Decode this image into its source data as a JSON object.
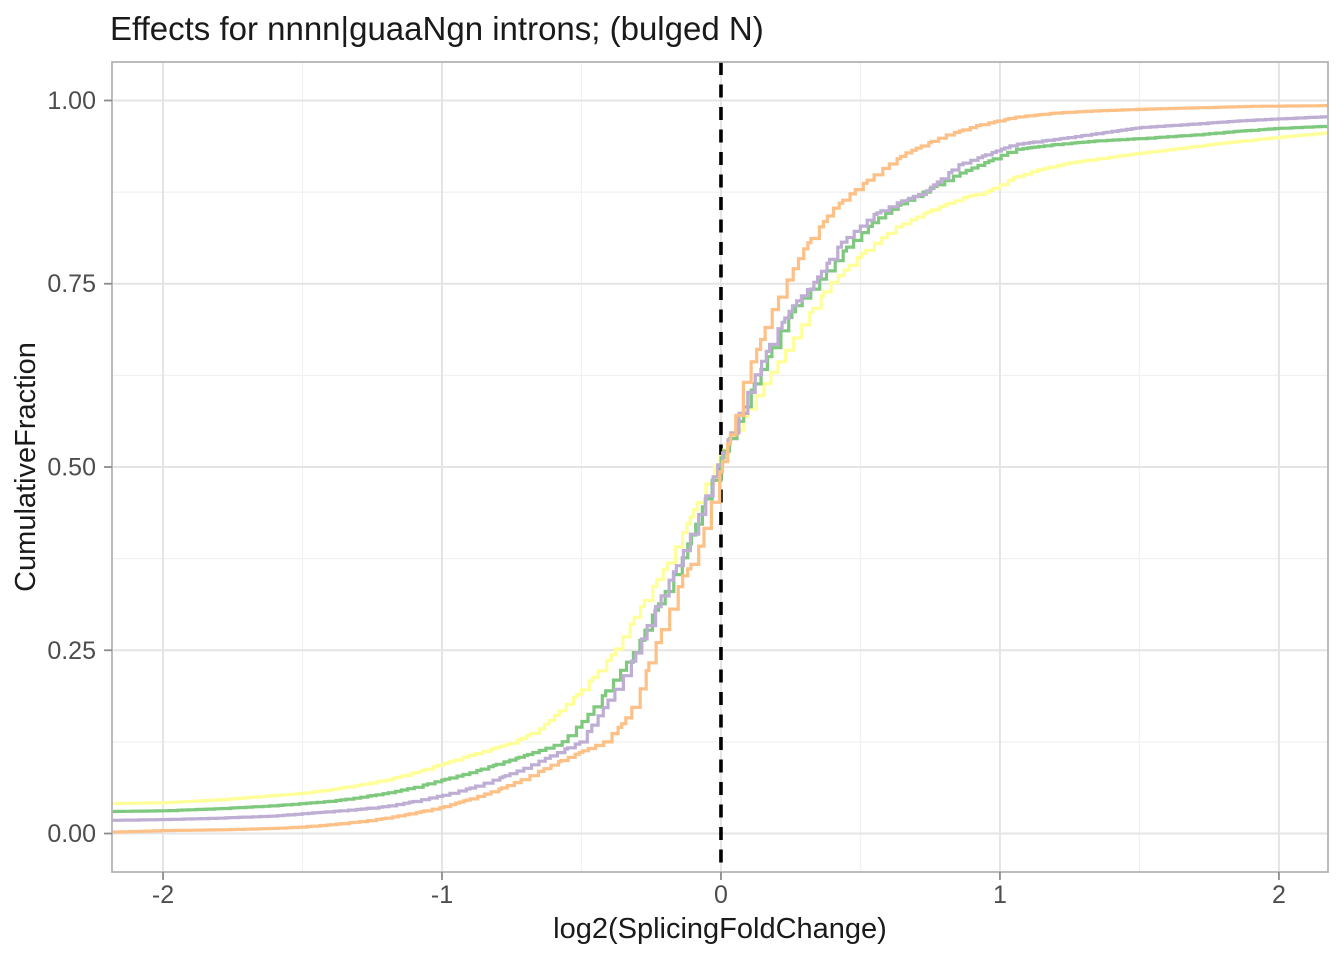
{
  "title": "Effects for nnnn|guaaNgn introns; (bulged N)",
  "colors": {
    "background": "#ffffff",
    "panel_background": "#ffffff",
    "panel_border": "#b4b4b4",
    "grid_major": "#e4e4e4",
    "grid_minor": "#f1f1f1",
    "axis_tick": "#8c8c8c",
    "tick_label": "#4d4d4d",
    "title_text": "#1a1a1a",
    "vline": "#000000"
  },
  "chart_data": {
    "type": "line",
    "subtype": "ecdf-step",
    "title": "Effects for nnnn|guaaNgn introns; (bulged N)",
    "xlabel": "log2(SplicingFoldChange)",
    "ylabel": "CumulativeFraction",
    "xlim": [
      -2.183,
      2.176
    ],
    "ylim": [
      -0.0525,
      1.0525
    ],
    "x_ticks": [
      -2,
      -1,
      0,
      1,
      2
    ],
    "x_tick_labels": [
      "-2",
      "-1",
      "0",
      "1",
      "2"
    ],
    "y_ticks": [
      0,
      0.25,
      0.5,
      0.75,
      1
    ],
    "y_tick_labels": [
      "0.00",
      "0.25",
      "0.50",
      "0.75",
      "1.00"
    ],
    "grid": "major+minor",
    "legend": "none",
    "vline": {
      "x": 0,
      "linetype": "dashed",
      "color": "#000000"
    },
    "line_width": 3.2,
    "series": [
      {
        "name": "yellow-curve",
        "color": "#FFFF99",
        "points": [
          [
            -2.183,
            0.041
          ],
          [
            -2.0,
            0.042
          ],
          [
            -1.8,
            0.046
          ],
          [
            -1.6,
            0.052
          ],
          [
            -1.5,
            0.055
          ],
          [
            -1.4,
            0.06
          ],
          [
            -1.3,
            0.066
          ],
          [
            -1.2,
            0.073
          ],
          [
            -1.1,
            0.083
          ],
          [
            -1.0,
            0.095
          ],
          [
            -0.9,
            0.107
          ],
          [
            -0.8,
            0.118
          ],
          [
            -0.74,
            0.125
          ],
          [
            -0.65,
            0.143
          ],
          [
            -0.6,
            0.16
          ],
          [
            -0.5,
            0.196
          ],
          [
            -0.44,
            0.222
          ],
          [
            -0.38,
            0.25
          ],
          [
            -0.3,
            0.302
          ],
          [
            -0.24,
            0.34
          ],
          [
            -0.183,
            0.375
          ],
          [
            -0.1,
            0.44
          ],
          [
            -0.025,
            0.5
          ],
          [
            0.06,
            0.556
          ],
          [
            0.172,
            0.625
          ],
          [
            0.25,
            0.67
          ],
          [
            0.32,
            0.712
          ],
          [
            0.39,
            0.75
          ],
          [
            0.5,
            0.79
          ],
          [
            0.62,
            0.826
          ],
          [
            0.75,
            0.85
          ],
          [
            0.87,
            0.868
          ],
          [
            0.95,
            0.875
          ],
          [
            1.05,
            0.895
          ],
          [
            1.14,
            0.906
          ],
          [
            1.25,
            0.915
          ],
          [
            1.4,
            0.923
          ],
          [
            1.5,
            0.928
          ],
          [
            1.65,
            0.935
          ],
          [
            1.8,
            0.942
          ],
          [
            2.0,
            0.95
          ],
          [
            2.176,
            0.956
          ]
        ]
      },
      {
        "name": "green-curve",
        "color": "#7FC97F",
        "points": [
          [
            -2.183,
            0.03
          ],
          [
            -2.0,
            0.031
          ],
          [
            -1.8,
            0.034
          ],
          [
            -1.6,
            0.038
          ],
          [
            -1.5,
            0.041
          ],
          [
            -1.4,
            0.044
          ],
          [
            -1.3,
            0.049
          ],
          [
            -1.2,
            0.055
          ],
          [
            -1.1,
            0.063
          ],
          [
            -1.0,
            0.073
          ],
          [
            -0.9,
            0.083
          ],
          [
            -0.8,
            0.095
          ],
          [
            -0.7,
            0.107
          ],
          [
            -0.6,
            0.12
          ],
          [
            -0.57,
            0.125
          ],
          [
            -0.5,
            0.152
          ],
          [
            -0.45,
            0.175
          ],
          [
            -0.38,
            0.212
          ],
          [
            -0.308,
            0.25
          ],
          [
            -0.25,
            0.295
          ],
          [
            -0.2,
            0.33
          ],
          [
            -0.14,
            0.375
          ],
          [
            -0.08,
            0.432
          ],
          [
            -0.014,
            0.5
          ],
          [
            0.05,
            0.556
          ],
          [
            0.133,
            0.625
          ],
          [
            0.2,
            0.676
          ],
          [
            0.27,
            0.722
          ],
          [
            0.34,
            0.75
          ],
          [
            0.45,
            0.8
          ],
          [
            0.55,
            0.836
          ],
          [
            0.63,
            0.856
          ],
          [
            0.724,
            0.875
          ],
          [
            0.85,
            0.9
          ],
          [
            0.95,
            0.916
          ],
          [
            1.05,
            0.933
          ],
          [
            1.2,
            0.94
          ],
          [
            1.35,
            0.945
          ],
          [
            1.5,
            0.948
          ],
          [
            1.7,
            0.953
          ],
          [
            1.85,
            0.958
          ],
          [
            2.0,
            0.962
          ],
          [
            2.176,
            0.965
          ]
        ]
      },
      {
        "name": "purple-curve",
        "color": "#BEAED4",
        "points": [
          [
            -2.183,
            0.018
          ],
          [
            -2.0,
            0.019
          ],
          [
            -1.8,
            0.021
          ],
          [
            -1.6,
            0.024
          ],
          [
            -1.5,
            0.027
          ],
          [
            -1.4,
            0.03
          ],
          [
            -1.3,
            0.033
          ],
          [
            -1.2,
            0.037
          ],
          [
            -1.1,
            0.044
          ],
          [
            -1.0,
            0.052
          ],
          [
            -0.9,
            0.062
          ],
          [
            -0.8,
            0.075
          ],
          [
            -0.7,
            0.09
          ],
          [
            -0.6,
            0.108
          ],
          [
            -0.505,
            0.125
          ],
          [
            -0.45,
            0.155
          ],
          [
            -0.4,
            0.185
          ],
          [
            -0.35,
            0.215
          ],
          [
            -0.3,
            0.25
          ],
          [
            -0.25,
            0.298
          ],
          [
            -0.2,
            0.335
          ],
          [
            -0.147,
            0.375
          ],
          [
            -0.08,
            0.435
          ],
          [
            -0.015,
            0.5
          ],
          [
            0.05,
            0.56
          ],
          [
            0.122,
            0.625
          ],
          [
            0.19,
            0.68
          ],
          [
            0.26,
            0.722
          ],
          [
            0.33,
            0.75
          ],
          [
            0.43,
            0.806
          ],
          [
            0.55,
            0.845
          ],
          [
            0.64,
            0.862
          ],
          [
            0.731,
            0.875
          ],
          [
            0.85,
            0.912
          ],
          [
            0.95,
            0.926
          ],
          [
            1.05,
            0.94
          ],
          [
            1.2,
            0.947
          ],
          [
            1.35,
            0.955
          ],
          [
            1.5,
            0.963
          ],
          [
            1.7,
            0.968
          ],
          [
            1.85,
            0.972
          ],
          [
            2.0,
            0.975
          ],
          [
            2.176,
            0.978
          ]
        ]
      },
      {
        "name": "orange-curve",
        "color": "#FDC086",
        "points": [
          [
            -2.183,
            0.002
          ],
          [
            -2.0,
            0.004
          ],
          [
            -1.8,
            0.005
          ],
          [
            -1.6,
            0.007
          ],
          [
            -1.5,
            0.009
          ],
          [
            -1.4,
            0.012
          ],
          [
            -1.3,
            0.016
          ],
          [
            -1.2,
            0.021
          ],
          [
            -1.1,
            0.028
          ],
          [
            -1.0,
            0.036
          ],
          [
            -0.9,
            0.047
          ],
          [
            -0.8,
            0.06
          ],
          [
            -0.7,
            0.076
          ],
          [
            -0.6,
            0.095
          ],
          [
            -0.5,
            0.112
          ],
          [
            -0.42,
            0.125
          ],
          [
            -0.35,
            0.152
          ],
          [
            -0.3,
            0.185
          ],
          [
            -0.244,
            0.25
          ],
          [
            -0.19,
            0.3
          ],
          [
            -0.14,
            0.35
          ],
          [
            -0.093,
            0.375
          ],
          [
            -0.05,
            0.43
          ],
          [
            0.0,
            0.5
          ],
          [
            0.05,
            0.565
          ],
          [
            0.086,
            0.625
          ],
          [
            0.13,
            0.662
          ],
          [
            0.18,
            0.712
          ],
          [
            0.23,
            0.75
          ],
          [
            0.3,
            0.8
          ],
          [
            0.4,
            0.852
          ],
          [
            0.47,
            0.875
          ],
          [
            0.56,
            0.902
          ],
          [
            0.66,
            0.928
          ],
          [
            0.8,
            0.952
          ],
          [
            0.92,
            0.966
          ],
          [
            1.05,
            0.977
          ],
          [
            1.2,
            0.983
          ],
          [
            1.35,
            0.986
          ],
          [
            1.5,
            0.988
          ],
          [
            1.7,
            0.99
          ],
          [
            1.9,
            0.992
          ],
          [
            2.05,
            0.9925
          ],
          [
            2.176,
            0.993
          ]
        ]
      }
    ]
  }
}
